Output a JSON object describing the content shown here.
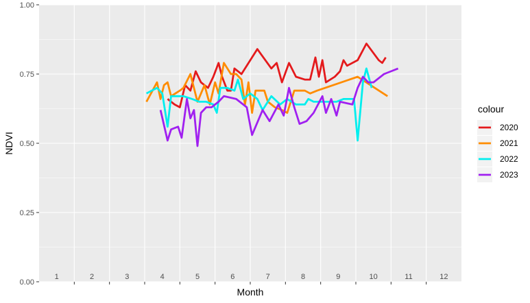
{
  "chart_data": {
    "type": "line",
    "xlabel": "Month",
    "ylabel": "NDVI",
    "xlim": [
      0.5,
      12.5
    ],
    "ylim": [
      0,
      1
    ],
    "x_ticks": [
      1,
      2,
      3,
      4,
      5,
      6,
      7,
      8,
      9,
      10,
      11,
      12
    ],
    "y_ticks": [
      "0.00",
      "0.25",
      "0.50",
      "0.75",
      "1.00"
    ],
    "grid": true,
    "legend": {
      "title": "colour",
      "position": "right"
    },
    "series": [
      {
        "name": "2020",
        "color": "#e41a1c",
        "points": [
          [
            4.15,
            0.66
          ],
          [
            4.35,
            0.64
          ],
          [
            4.5,
            0.63
          ],
          [
            4.65,
            0.71
          ],
          [
            4.8,
            0.69
          ],
          [
            4.95,
            0.76
          ],
          [
            5.1,
            0.72
          ],
          [
            5.3,
            0.7
          ],
          [
            5.45,
            0.74
          ],
          [
            5.6,
            0.79
          ],
          [
            5.7,
            0.74
          ],
          [
            5.85,
            0.69
          ],
          [
            5.95,
            0.69
          ],
          [
            6.05,
            0.77
          ],
          [
            6.25,
            0.75
          ],
          [
            6.7,
            0.84
          ],
          [
            7.1,
            0.77
          ],
          [
            7.25,
            0.79
          ],
          [
            7.4,
            0.72
          ],
          [
            7.6,
            0.79
          ],
          [
            7.8,
            0.74
          ],
          [
            8.05,
            0.73
          ],
          [
            8.2,
            0.73
          ],
          [
            8.35,
            0.81
          ],
          [
            8.45,
            0.74
          ],
          [
            8.55,
            0.8
          ],
          [
            8.65,
            0.72
          ],
          [
            8.9,
            0.74
          ],
          [
            9.05,
            0.76
          ],
          [
            9.15,
            0.8
          ],
          [
            9.25,
            0.78
          ],
          [
            9.55,
            0.8
          ],
          [
            9.8,
            0.86
          ],
          [
            10.15,
            0.8
          ],
          [
            10.25,
            0.79
          ],
          [
            10.35,
            0.81
          ]
        ]
      },
      {
        "name": "2021",
        "color": "#ff8c00",
        "points": [
          [
            3.55,
            0.65
          ],
          [
            3.85,
            0.72
          ],
          [
            3.95,
            0.66
          ],
          [
            4.05,
            0.71
          ],
          [
            4.15,
            0.72
          ],
          [
            4.25,
            0.67
          ],
          [
            4.5,
            0.69
          ],
          [
            4.6,
            0.7
          ],
          [
            4.8,
            0.75
          ],
          [
            5.0,
            0.65
          ],
          [
            5.2,
            0.71
          ],
          [
            5.35,
            0.64
          ],
          [
            5.5,
            0.72
          ],
          [
            5.6,
            0.68
          ],
          [
            5.75,
            0.79
          ],
          [
            5.95,
            0.75
          ],
          [
            6.1,
            0.75
          ],
          [
            6.25,
            0.73
          ],
          [
            6.35,
            0.64
          ],
          [
            6.45,
            0.72
          ],
          [
            6.55,
            0.61
          ],
          [
            6.65,
            0.69
          ],
          [
            6.9,
            0.69
          ],
          [
            7.0,
            0.65
          ],
          [
            7.1,
            0.64
          ],
          [
            7.2,
            0.63
          ],
          [
            7.4,
            0.62
          ],
          [
            7.55,
            0.61
          ],
          [
            7.75,
            0.69
          ],
          [
            8.05,
            0.69
          ],
          [
            8.2,
            0.68
          ],
          [
            8.4,
            0.69
          ],
          [
            9.55,
            0.74
          ],
          [
            10.4,
            0.67
          ]
        ]
      },
      {
        "name": "2022",
        "color": "#00eeee",
        "points": [
          [
            3.55,
            0.68
          ],
          [
            3.7,
            0.69
          ],
          [
            3.85,
            0.7
          ],
          [
            4.0,
            0.68
          ],
          [
            4.15,
            0.56
          ],
          [
            4.25,
            0.67
          ],
          [
            4.45,
            0.67
          ],
          [
            4.6,
            0.67
          ],
          [
            4.85,
            0.66
          ],
          [
            5.05,
            0.65
          ],
          [
            5.25,
            0.65
          ],
          [
            5.45,
            0.64
          ],
          [
            5.55,
            0.61
          ],
          [
            5.65,
            0.7
          ],
          [
            5.85,
            0.7
          ],
          [
            6.05,
            0.69
          ],
          [
            6.15,
            0.73
          ],
          [
            6.3,
            0.66
          ],
          [
            6.5,
            0.68
          ],
          [
            6.7,
            0.66
          ],
          [
            6.85,
            0.62
          ],
          [
            7.1,
            0.67
          ],
          [
            7.35,
            0.64
          ],
          [
            7.55,
            0.66
          ],
          [
            7.8,
            0.64
          ],
          [
            8.05,
            0.64
          ],
          [
            8.15,
            0.66
          ],
          [
            8.3,
            0.65
          ],
          [
            8.5,
            0.65
          ],
          [
            8.7,
            0.65
          ],
          [
            8.95,
            0.65
          ],
          [
            9.15,
            0.66
          ],
          [
            9.45,
            0.66
          ],
          [
            9.55,
            0.51
          ],
          [
            9.7,
            0.72
          ],
          [
            9.8,
            0.77
          ],
          [
            9.95,
            0.7
          ]
        ]
      },
      {
        "name": "2023",
        "color": "#a020f0",
        "points": [
          [
            3.95,
            0.62
          ],
          [
            4.15,
            0.51
          ],
          [
            4.25,
            0.55
          ],
          [
            4.45,
            0.56
          ],
          [
            4.55,
            0.52
          ],
          [
            4.7,
            0.66
          ],
          [
            4.8,
            0.59
          ],
          [
            4.9,
            0.62
          ],
          [
            5.0,
            0.49
          ],
          [
            5.1,
            0.61
          ],
          [
            5.25,
            0.63
          ],
          [
            5.4,
            0.63
          ],
          [
            5.6,
            0.65
          ],
          [
            5.75,
            0.67
          ],
          [
            6.1,
            0.66
          ],
          [
            6.4,
            0.63
          ],
          [
            6.55,
            0.53
          ],
          [
            6.85,
            0.62
          ],
          [
            7.05,
            0.58
          ],
          [
            7.3,
            0.64
          ],
          [
            7.45,
            0.6
          ],
          [
            7.6,
            0.7
          ],
          [
            7.75,
            0.63
          ],
          [
            7.9,
            0.57
          ],
          [
            8.1,
            0.58
          ],
          [
            8.3,
            0.61
          ],
          [
            8.55,
            0.67
          ],
          [
            8.65,
            0.61
          ],
          [
            8.8,
            0.66
          ],
          [
            8.95,
            0.6
          ],
          [
            9.05,
            0.65
          ],
          [
            9.4,
            0.64
          ],
          [
            9.55,
            0.7
          ],
          [
            9.7,
            0.74
          ],
          [
            9.85,
            0.72
          ],
          [
            10.0,
            0.72
          ],
          [
            10.3,
            0.75
          ],
          [
            10.5,
            0.76
          ],
          [
            10.7,
            0.77
          ]
        ]
      }
    ]
  }
}
